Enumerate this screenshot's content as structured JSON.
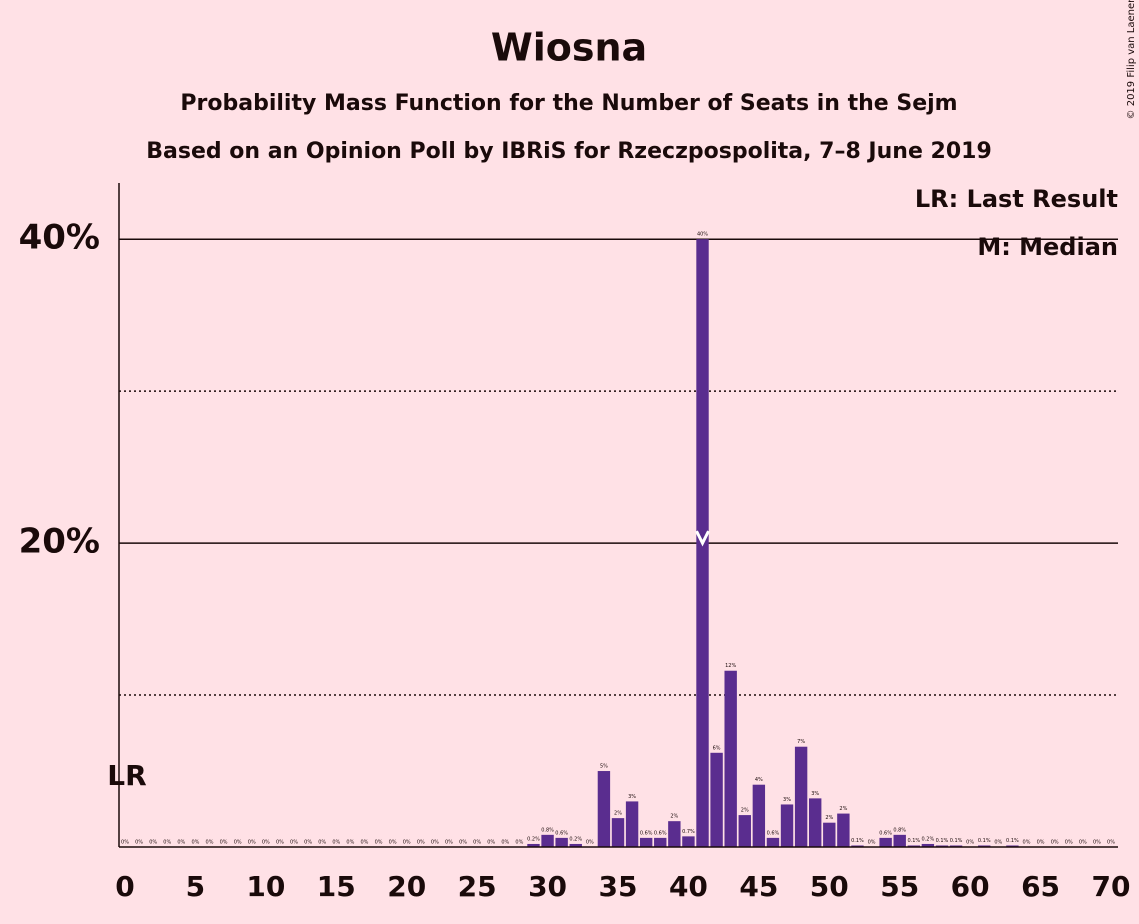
{
  "chart_data": {
    "type": "bar",
    "title": "Wiosna",
    "subtitle": "Probability Mass Function for the Number of Seats in the Sejm",
    "subtitle2": "Based on an Opinion Poll by IBRiS for Rzeczpospolita, 7–8 June 2019",
    "copyright": "© 2019 Filip van Laenen",
    "legend": [
      "LR: Last Result",
      "M: Median"
    ],
    "last_result": {
      "label": "LR",
      "x": 0
    },
    "median": {
      "label": "M",
      "x": 41
    },
    "color": "#5a2d8f",
    "x": [
      0,
      1,
      2,
      3,
      4,
      5,
      6,
      7,
      8,
      9,
      10,
      11,
      12,
      13,
      14,
      15,
      16,
      17,
      18,
      19,
      20,
      21,
      22,
      23,
      24,
      25,
      26,
      27,
      28,
      29,
      30,
      31,
      32,
      33,
      34,
      35,
      36,
      37,
      38,
      39,
      40,
      41,
      42,
      43,
      44,
      45,
      46,
      47,
      48,
      49,
      50,
      51,
      52,
      53,
      54,
      55,
      56,
      57,
      58,
      59,
      60,
      61,
      62,
      63,
      64,
      65,
      66,
      67,
      68,
      69,
      70
    ],
    "values": [
      0,
      0,
      0,
      0,
      0,
      0,
      0,
      0,
      0,
      0,
      0,
      0,
      0,
      0,
      0,
      0,
      0,
      0,
      0,
      0,
      0,
      0,
      0,
      0,
      0,
      0,
      0,
      0,
      0,
      0.2,
      0.8,
      0.6,
      0.2,
      0,
      5.0,
      1.9,
      3.0,
      0.6,
      0.6,
      1.7,
      0.7,
      40.0,
      6.2,
      11.6,
      2.1,
      4.1,
      0.6,
      2.8,
      6.6,
      3.2,
      1.6,
      2.2,
      0.1,
      0,
      0.6,
      0.8,
      0.1,
      0.2,
      0.1,
      0.1,
      0,
      0.1,
      0,
      0.1,
      0,
      0,
      0,
      0,
      0,
      0,
      0
    ],
    "value_labels": [
      "0%",
      "0%",
      "0%",
      "0%",
      "0%",
      "0%",
      "0%",
      "0%",
      "0%",
      "0%",
      "0%",
      "0%",
      "0%",
      "0%",
      "0%",
      "0%",
      "0%",
      "0%",
      "0%",
      "0%",
      "0%",
      "0%",
      "0%",
      "0%",
      "0%",
      "0%",
      "0%",
      "0%",
      "0%",
      "0.2%",
      "0.8%",
      "0.6%",
      "0.2%",
      "0%",
      "5%",
      "2%",
      "3%",
      "0.6%",
      "0.6%",
      "2%",
      "0.7%",
      "40%",
      "6%",
      "12%",
      "2%",
      "4%",
      "0.6%",
      "3%",
      "7%",
      "3%",
      "2%",
      "2%",
      "0.1%",
      "0%",
      "0.6%",
      "0.8%",
      "0.1%",
      "0.2%",
      "0.1%",
      "0.1%",
      "0%",
      "0.1%",
      "0%",
      "0.1%",
      "0%",
      "0%",
      "0%",
      "0%",
      "0%",
      "0%",
      "0%"
    ],
    "xlim": [
      0,
      70
    ],
    "xticks": [
      0,
      5,
      10,
      15,
      20,
      25,
      30,
      35,
      40,
      45,
      50,
      55,
      60,
      65,
      70
    ],
    "ylim": [
      0,
      43.7
    ],
    "yticks": [
      {
        "value": 20,
        "label": "20%"
      },
      {
        "value": 40,
        "label": "40%"
      }
    ],
    "yminor_ticks": [
      10,
      30
    ],
    "grid": true
  }
}
